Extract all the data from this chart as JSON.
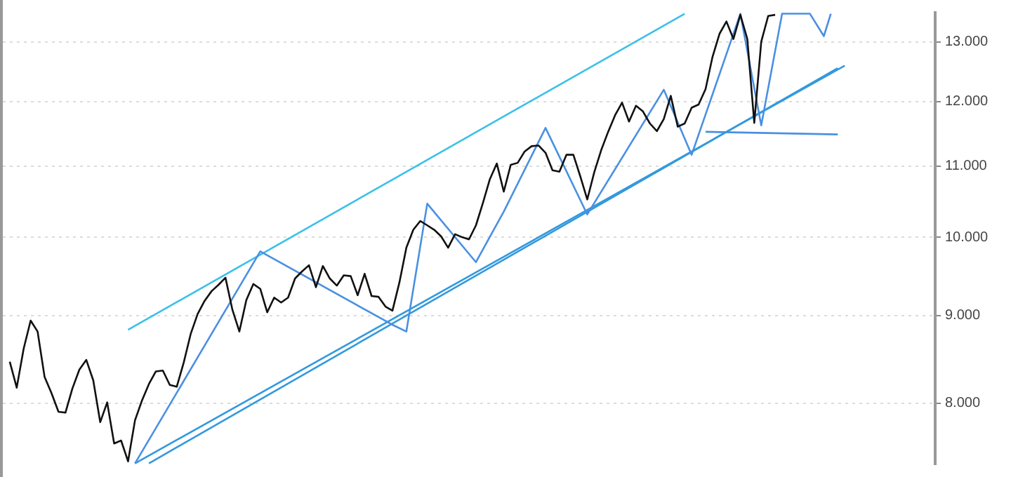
{
  "chart_data": {
    "type": "line",
    "log": "y",
    "grid": "y",
    "legend": false,
    "marker": "none",
    "line_style": "solid",
    "tick_labels": "y",
    "categories": [
      null,
      null,
      null,
      null,
      null,
      null,
      null,
      null,
      null,
      null,
      null,
      null,
      null,
      null,
      null,
      null,
      null,
      null,
      null,
      null,
      null,
      null,
      null,
      null,
      null,
      null,
      null,
      null,
      null,
      null,
      null,
      null,
      null,
      null,
      null,
      null,
      null,
      null,
      null,
      null,
      null,
      null,
      null,
      null,
      null,
      null,
      null,
      null,
      null,
      null,
      null,
      null,
      null,
      null,
      null,
      null,
      null,
      null,
      null,
      null,
      null,
      null,
      null,
      null,
      null,
      null,
      null,
      null,
      null,
      null,
      null,
      null,
      null,
      null,
      null,
      null,
      null,
      null,
      null,
      null,
      null,
      null,
      null,
      null,
      null,
      null,
      null,
      null,
      null,
      null,
      null,
      null,
      null,
      null,
      null,
      null,
      null,
      null,
      null,
      null,
      null,
      null,
      null,
      null,
      null,
      null,
      null,
      null,
      null,
      null,
      null,
      null,
      null,
      null,
      null,
      null,
      null,
      null,
      null,
      null,
      null,
      null,
      null,
      null,
      null,
      null,
      null,
      null,
      null,
      null,
      null,
      null,
      null,
      null,
      null
    ],
    "ylim": [
      7.37,
      13.52
    ],
    "yticks": [
      {
        "value": 8,
        "label": "8.000"
      },
      {
        "value": 9,
        "label": "9.000"
      },
      {
        "value": 10,
        "label": "10.000"
      },
      {
        "value": 11,
        "label": "11.000"
      },
      {
        "value": 12,
        "label": "12.000"
      },
      {
        "value": 13,
        "label": "13.000"
      }
    ],
    "series": [
      {
        "color": "#111111",
        "values": [
          null,
          8.46,
          8.17,
          8.61,
          8.94,
          8.81,
          8.29,
          8.11,
          7.91,
          7.9,
          8.16,
          8.37,
          8.48,
          8.25,
          7.8,
          8.01,
          7.58,
          7.61,
          7.4,
          7.82,
          8.03,
          8.21,
          8.35,
          8.36,
          8.2,
          8.18,
          8.45,
          8.78,
          9.02,
          9.18,
          9.3,
          9.38,
          9.47,
          9.07,
          8.81,
          9.19,
          9.39,
          9.33,
          9.04,
          9.22,
          9.16,
          9.22,
          9.46,
          9.55,
          9.63,
          9.35,
          9.62,
          9.46,
          9.37,
          9.5,
          9.49,
          9.25,
          9.52,
          9.24,
          9.23,
          9.11,
          9.06,
          9.41,
          9.86,
          10.1,
          10.22,
          10.16,
          10.1,
          10.01,
          9.86,
          10.04,
          10.0,
          9.97,
          10.16,
          10.47,
          10.81,
          11.04,
          10.63,
          11.02,
          11.05,
          11.22,
          11.3,
          11.31,
          11.2,
          10.94,
          10.92,
          11.17,
          11.17,
          10.85,
          10.52,
          10.91,
          11.24,
          11.52,
          11.78,
          11.98,
          11.68,
          11.93,
          11.84,
          11.65,
          11.53,
          11.72,
          12.09,
          11.6,
          11.65,
          11.9,
          11.95,
          12.2,
          12.74,
          13.14,
          13.36,
          13.05,
          13.48,
          13.05,
          11.66,
          13.0,
          13.46,
          13.48,
          null,
          null,
          null,
          null,
          null,
          null,
          null,
          null,
          null,
          null,
          null,
          null,
          null,
          null,
          null,
          null,
          null,
          null,
          null,
          null,
          null,
          null,
          null
        ]
      },
      {
        "color": "#4a90e2",
        "values": [
          null,
          null,
          null,
          null,
          null,
          null,
          null,
          null,
          null,
          null,
          null,
          null,
          null,
          null,
          null,
          null,
          null,
          null,
          null,
          7.38,
          null,
          null,
          null,
          null,
          null,
          null,
          null,
          null,
          null,
          null,
          null,
          null,
          null,
          null,
          null,
          null,
          null,
          9.81,
          null,
          null,
          null,
          null,
          null,
          null,
          null,
          null,
          null,
          null,
          null,
          null,
          null,
          null,
          null,
          null,
          null,
          null,
          8.89,
          null,
          8.81,
          null,
          null,
          10.46,
          null,
          null,
          null,
          null,
          null,
          null,
          9.67,
          null,
          null,
          null,
          10.35,
          null,
          null,
          null,
          null,
          null,
          11.58,
          null,
          null,
          null,
          null,
          null,
          10.31,
          null,
          null,
          null,
          null,
          null,
          null,
          null,
          null,
          null,
          null,
          12.19,
          null,
          null,
          null,
          11.17,
          null,
          null,
          null,
          null,
          null,
          null,
          13.5,
          null,
          null,
          11.62,
          null,
          null,
          13.5,
          null,
          null,
          null,
          13.5,
          null,
          13.1,
          13.5,
          null,
          null,
          null,
          null,
          null,
          null,
          null,
          null,
          null,
          null,
          null,
          null,
          null,
          null,
          null
        ]
      },
      {
        "color": "#3cc0ea",
        "values": [
          null,
          null,
          null,
          null,
          null,
          null,
          null,
          null,
          null,
          null,
          null,
          null,
          null,
          null,
          null,
          null,
          null,
          null,
          8.83,
          null,
          null,
          null,
          null,
          null,
          null,
          null,
          null,
          null,
          null,
          null,
          null,
          null,
          null,
          null,
          null,
          null,
          null,
          null,
          null,
          null,
          null,
          null,
          null,
          null,
          null,
          null,
          null,
          null,
          null,
          null,
          null,
          null,
          null,
          null,
          null,
          null,
          null,
          null,
          null,
          null,
          null,
          null,
          null,
          null,
          null,
          null,
          null,
          null,
          null,
          null,
          null,
          null,
          null,
          null,
          null,
          null,
          null,
          null,
          null,
          null,
          null,
          null,
          null,
          null,
          null,
          null,
          null,
          null,
          null,
          null,
          null,
          null,
          null,
          null,
          null,
          null,
          null,
          null,
          13.5,
          null,
          null,
          null,
          null,
          null,
          null,
          null,
          null,
          null,
          null,
          null,
          null,
          null,
          null,
          null,
          null,
          null,
          null,
          null,
          null,
          null,
          null,
          null,
          null,
          null,
          null,
          null,
          null,
          null,
          null,
          null,
          null,
          null,
          null,
          null,
          null
        ]
      },
      {
        "color": "#3399dd",
        "values": [
          null,
          null,
          null,
          null,
          null,
          null,
          null,
          null,
          null,
          null,
          null,
          null,
          null,
          null,
          null,
          null,
          null,
          null,
          null,
          7.38,
          null,
          null,
          null,
          null,
          null,
          null,
          null,
          null,
          null,
          null,
          null,
          null,
          null,
          null,
          null,
          null,
          null,
          null,
          null,
          null,
          null,
          null,
          null,
          null,
          null,
          null,
          null,
          null,
          null,
          null,
          null,
          null,
          null,
          null,
          null,
          null,
          null,
          null,
          null,
          null,
          null,
          null,
          null,
          null,
          null,
          null,
          null,
          null,
          null,
          null,
          null,
          null,
          null,
          null,
          null,
          null,
          null,
          null,
          null,
          null,
          null,
          null,
          null,
          null,
          null,
          null,
          null,
          null,
          null,
          null,
          null,
          null,
          null,
          null,
          null,
          null,
          null,
          null,
          null,
          null,
          null,
          null,
          null,
          null,
          null,
          null,
          null,
          null,
          null,
          null,
          null,
          null,
          null,
          null,
          null,
          null,
          null,
          null,
          null,
          null,
          null,
          12.59,
          null,
          null,
          null,
          null,
          null,
          null,
          null,
          null,
          null,
          null,
          null,
          null,
          null
        ]
      },
      {
        "color": "#3399dd",
        "values": [
          null,
          null,
          null,
          null,
          null,
          null,
          null,
          null,
          null,
          null,
          null,
          null,
          null,
          null,
          null,
          null,
          null,
          null,
          null,
          null,
          null,
          7.38,
          null,
          null,
          null,
          null,
          null,
          null,
          null,
          null,
          null,
          null,
          null,
          null,
          null,
          null,
          null,
          null,
          null,
          null,
          null,
          null,
          null,
          null,
          null,
          null,
          null,
          null,
          null,
          null,
          null,
          null,
          null,
          null,
          null,
          null,
          null,
          null,
          null,
          null,
          null,
          null,
          null,
          null,
          null,
          null,
          null,
          null,
          null,
          null,
          null,
          null,
          null,
          null,
          null,
          null,
          null,
          null,
          null,
          null,
          null,
          null,
          null,
          null,
          null,
          null,
          null,
          null,
          null,
          null,
          null,
          null,
          null,
          null,
          null,
          null,
          null,
          null,
          null,
          null,
          null,
          null,
          null,
          null,
          null,
          null,
          null,
          null,
          null,
          null,
          null,
          null,
          null,
          null,
          null,
          null,
          null,
          null,
          null,
          null,
          12.55,
          null,
          null,
          null,
          null,
          null,
          null,
          null,
          null,
          null,
          null,
          null,
          null,
          null,
          null
        ]
      },
      {
        "color": "#4a90e2",
        "values": [
          null,
          null,
          null,
          null,
          null,
          null,
          null,
          null,
          null,
          null,
          null,
          null,
          null,
          null,
          null,
          null,
          null,
          null,
          null,
          null,
          null,
          null,
          null,
          null,
          null,
          null,
          null,
          null,
          null,
          null,
          null,
          null,
          null,
          null,
          null,
          null,
          null,
          null,
          null,
          null,
          null,
          null,
          null,
          null,
          null,
          null,
          null,
          null,
          null,
          null,
          null,
          null,
          null,
          null,
          null,
          null,
          null,
          null,
          null,
          null,
          null,
          null,
          null,
          null,
          null,
          null,
          null,
          null,
          null,
          null,
          null,
          null,
          null,
          null,
          null,
          null,
          null,
          null,
          null,
          null,
          null,
          null,
          null,
          null,
          null,
          null,
          null,
          null,
          null,
          null,
          null,
          null,
          null,
          null,
          null,
          null,
          null,
          null,
          null,
          null,
          null,
          11.52,
          null,
          null,
          null,
          null,
          null,
          null,
          null,
          null,
          null,
          null,
          null,
          null,
          null,
          null,
          null,
          null,
          null,
          null,
          11.48,
          null,
          null,
          null,
          null,
          null,
          null,
          null,
          null,
          null,
          null,
          null,
          null,
          null,
          null
        ]
      }
    ]
  }
}
